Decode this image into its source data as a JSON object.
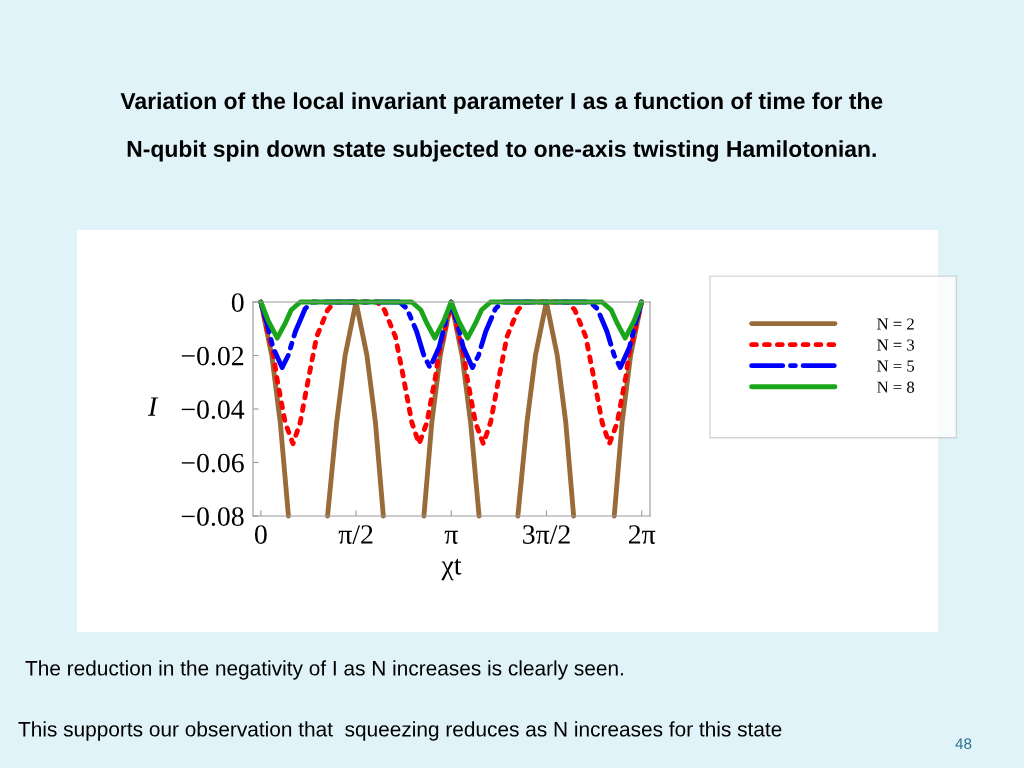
{
  "chart_data": {
    "type": "line",
    "title": "Variation of the local invariant parameter I as a function of time for the\nN-qubit spin down state subjected to one-axis twisting Hamilotonian.",
    "xlabel": "χt",
    "ylabel": "I",
    "xlim": [
      -0.13,
      6.42
    ],
    "ylim": [
      -0.08,
      0
    ],
    "xticks": [
      0,
      {
        "value": 1.5708,
        "label": "π/2"
      },
      {
        "value": 3.1416,
        "label": "π"
      },
      {
        "value": 4.7124,
        "label": "3π/2"
      },
      {
        "value": 6.2832,
        "label": "2π"
      }
    ],
    "yticks": [
      0,
      {
        "value": -0.02,
        "label": "−0.02"
      },
      {
        "value": -0.04,
        "label": "−0.04"
      },
      {
        "value": -0.06,
        "label": "−0.06"
      },
      {
        "value": -0.08,
        "label": "−0.08"
      }
    ],
    "grid": false,
    "legend": "right",
    "marker": "none",
    "series": [
      {
        "name": "N = 2",
        "color": "#9a6b3a",
        "line_style": "solid",
        "x": [
          0,
          0.18,
          0.32,
          0.455,
          0.78,
          1.1,
          1.25,
          1.39,
          1.57,
          1.75,
          1.89,
          2.02,
          2.36,
          2.69,
          2.82,
          2.96,
          3.14,
          3.32,
          3.46,
          3.6,
          3.93,
          4.24,
          4.39,
          4.53,
          4.71,
          4.89,
          5.03,
          5.16,
          5.5,
          5.83,
          5.96,
          6.1,
          6.28
        ],
        "values": [
          0,
          -0.02,
          -0.045,
          -0.08,
          null,
          -0.08,
          -0.045,
          -0.02,
          0,
          -0.02,
          -0.045,
          -0.08,
          null,
          -0.08,
          -0.045,
          -0.02,
          0,
          -0.02,
          -0.045,
          -0.08,
          null,
          -0.08,
          -0.045,
          -0.02,
          0,
          -0.02,
          -0.045,
          -0.08,
          null,
          -0.08,
          -0.045,
          -0.02,
          0
        ]
      },
      {
        "name": "N = 3",
        "color": "#ff0000",
        "line_style": "dotted",
        "x": [
          0,
          0.1,
          0.21,
          0.26,
          0.4,
          0.53,
          0.65,
          0.79,
          0.92,
          1.1,
          1.22,
          1.57,
          1.92,
          2.04,
          2.22,
          2.35,
          2.49,
          2.61,
          2.74,
          2.88,
          2.93,
          3.04,
          3.14,
          3.24,
          3.35,
          3.4,
          3.54,
          3.67,
          3.79,
          3.93,
          4.06,
          4.24,
          4.36,
          4.71,
          5.06,
          5.18,
          5.36,
          5.49,
          5.63,
          5.75,
          5.88,
          6.02,
          6.07,
          6.18,
          6.28
        ],
        "values": [
          0,
          -0.01,
          -0.02,
          -0.028,
          -0.045,
          -0.053,
          -0.045,
          -0.028,
          -0.013,
          -0.003,
          0,
          0,
          0,
          -0.003,
          -0.013,
          -0.028,
          -0.045,
          -0.053,
          -0.045,
          -0.028,
          -0.02,
          -0.01,
          0,
          -0.01,
          -0.02,
          -0.028,
          -0.045,
          -0.053,
          -0.045,
          -0.028,
          -0.013,
          -0.003,
          0,
          0,
          0,
          -0.003,
          -0.013,
          -0.028,
          -0.045,
          -0.053,
          -0.045,
          -0.028,
          -0.02,
          -0.01,
          0
        ]
      },
      {
        "name": "N = 5",
        "color": "#0000ff",
        "line_style": "dashdot",
        "x": [
          0,
          0.1,
          0.2,
          0.35,
          0.45,
          0.57,
          0.73,
          0.85,
          1.57,
          2.29,
          2.41,
          2.57,
          2.69,
          2.79,
          2.94,
          3.04,
          3.14,
          3.24,
          3.34,
          3.49,
          3.59,
          3.71,
          3.87,
          3.99,
          4.71,
          5.43,
          5.55,
          5.71,
          5.83,
          5.93,
          6.08,
          6.18,
          6.28
        ],
        "values": [
          0,
          -0.008,
          -0.017,
          -0.0245,
          -0.02,
          -0.011,
          -0.0025,
          0,
          0,
          0,
          -0.0025,
          -0.011,
          -0.02,
          -0.0245,
          -0.017,
          -0.008,
          0,
          -0.008,
          -0.017,
          -0.0245,
          -0.02,
          -0.011,
          -0.0025,
          0,
          0,
          0,
          -0.0025,
          -0.011,
          -0.02,
          -0.0245,
          -0.017,
          -0.008,
          0
        ]
      },
      {
        "name": "N = 8",
        "color": "#1aa51a",
        "line_style": "solid",
        "x": [
          0,
          0.12,
          0.27,
          0.4,
          0.5,
          0.65,
          1.57,
          2.49,
          2.64,
          2.74,
          2.87,
          3.02,
          3.14,
          3.26,
          3.41,
          3.54,
          3.64,
          3.79,
          4.71,
          5.63,
          5.78,
          5.88,
          6.01,
          6.16,
          6.28
        ],
        "values": [
          0,
          -0.007,
          -0.0135,
          -0.008,
          -0.003,
          0,
          0,
          0,
          -0.003,
          -0.008,
          -0.0135,
          -0.007,
          0,
          -0.007,
          -0.0135,
          -0.008,
          -0.003,
          0,
          0,
          0,
          -0.003,
          -0.008,
          -0.0135,
          -0.007,
          0
        ]
      }
    ],
    "annotations": [
      "The reduction in the negativity of I as N increases is clearly seen.",
      "This supports our observation that  squeezing reduces as N increases for this state",
      "48"
    ]
  }
}
